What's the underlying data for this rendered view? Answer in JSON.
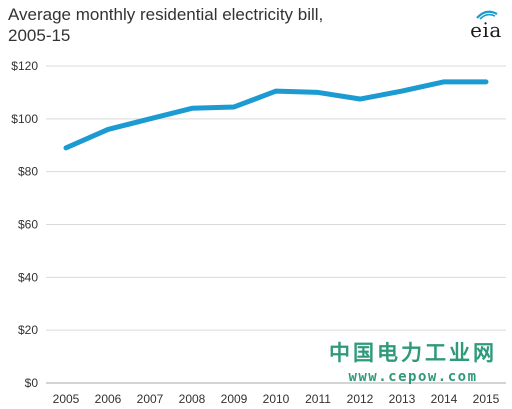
{
  "chart_data": {
    "type": "line",
    "title": "Average monthly residential electricity bill, 2005-15",
    "title_lines": [
      "Average monthly residential electricity bill,",
      "2005-15"
    ],
    "xlabel": "",
    "ylabel": "",
    "categories": [
      "2005",
      "2006",
      "2007",
      "2008",
      "2009",
      "2010",
      "2011",
      "2012",
      "2013",
      "2014",
      "2015"
    ],
    "series": [
      {
        "values": [
          89,
          96,
          100,
          104,
          104.5,
          110.5,
          110,
          107.5,
          110.5,
          114,
          114
        ]
      }
    ],
    "ylim": [
      0,
      120
    ],
    "yticks": [
      0,
      20,
      40,
      60,
      80,
      100,
      120
    ],
    "ytick_labels": [
      "$0",
      "$20",
      "$40",
      "$60",
      "$80",
      "$100",
      "$120"
    ],
    "grid": true,
    "line_color": "#1b9bd1",
    "grid_color": "#d9d9d9"
  },
  "logo": {
    "text": "eia",
    "color": "#1b9bd1"
  },
  "watermark": {
    "chinese": "中国电力工业网",
    "url": "www.cepow.com",
    "color": "#2f9a7a"
  }
}
